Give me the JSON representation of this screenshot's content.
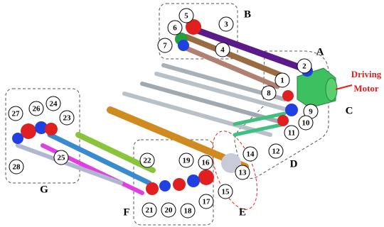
{
  "nodes": [
    {
      "label": "1"
    },
    {
      "label": "2"
    },
    {
      "label": "3"
    },
    {
      "label": "4"
    },
    {
      "label": "5"
    },
    {
      "label": "6"
    },
    {
      "label": "7"
    },
    {
      "label": "8"
    },
    {
      "label": "9"
    },
    {
      "label": "10"
    },
    {
      "label": "11"
    },
    {
      "label": "12"
    },
    {
      "label": "13"
    },
    {
      "label": "14"
    },
    {
      "label": "15"
    },
    {
      "label": "16"
    },
    {
      "label": "17"
    },
    {
      "label": "18"
    },
    {
      "label": "19"
    },
    {
      "label": "20"
    },
    {
      "label": "21"
    },
    {
      "label": "22"
    },
    {
      "label": "23"
    },
    {
      "label": "24"
    },
    {
      "label": "25"
    },
    {
      "label": "26"
    },
    {
      "label": "27"
    },
    {
      "label": "28"
    }
  ],
  "groups": [
    {
      "label": "A"
    },
    {
      "label": "B"
    },
    {
      "label": "C"
    },
    {
      "label": "D"
    },
    {
      "label": "E"
    },
    {
      "label": "F"
    },
    {
      "label": "G"
    }
  ],
  "motor": {
    "lines": [
      "Driving",
      "Motor"
    ]
  }
}
